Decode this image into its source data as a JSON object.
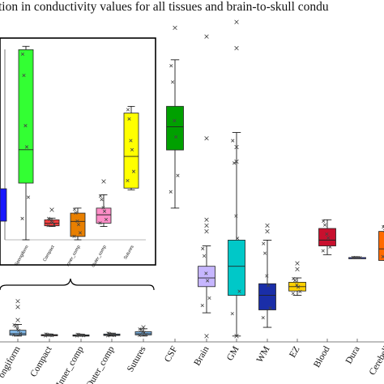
{
  "chart_data": {
    "type": "box",
    "title": "tion in conductivity values for all tissues and brain-to-skull condu",
    "main": {
      "categories": [
        "ongiform",
        "Compact",
        "Inner_comp",
        "Outer_comp",
        "Sutures",
        "CSF",
        "Brain",
        "GM",
        "WM",
        "EZ",
        "Blood",
        "Dura",
        "Cerebell"
      ],
      "colors": [
        "#7fb6e6",
        "#ff9090",
        "#7fb6e6",
        "#7fb6e6",
        "#7fb6e6",
        "#00a000",
        "#c6b6ff",
        "#00c8c8",
        "#1a2ea8",
        "#ffd000",
        "#c8102e",
        "#2a3cd8",
        "#ff6a00"
      ],
      "boxes": [
        {
          "min": 0.0,
          "q1": 0.003,
          "median": 0.008,
          "q3": 0.02,
          "max": 0.04,
          "outliers": [
            0.055,
            0.1,
            0.12
          ]
        },
        {
          "min": 0.0,
          "q1": 0.001,
          "median": 0.003,
          "q3": 0.005,
          "max": 0.007,
          "outliers": []
        },
        {
          "min": 0.0,
          "q1": 0.001,
          "median": 0.002,
          "q3": 0.004,
          "max": 0.006,
          "outliers": []
        },
        {
          "min": 0.0,
          "q1": 0.002,
          "median": 0.004,
          "q3": 0.007,
          "max": 0.01,
          "outliers": []
        },
        {
          "min": 0.0,
          "q1": 0.004,
          "median": 0.008,
          "q3": 0.015,
          "max": 0.025,
          "outliers": [
            0.03
          ]
        },
        {
          "min": 0.44,
          "q1": 0.64,
          "median": 0.72,
          "q3": 0.79,
          "max": 0.95,
          "outliers": [
            1.06
          ]
        },
        {
          "min": 0.08,
          "q1": 0.17,
          "median": 0.2,
          "q3": 0.24,
          "max": 0.31,
          "outliers": [
            0.0,
            0.36,
            0.38,
            0.4,
            0.68,
            1.03
          ]
        },
        {
          "min": 0.0,
          "q1": 0.14,
          "median": 0.24,
          "q3": 0.33,
          "max": 0.7,
          "outliers": [
            0.0,
            0.6,
            0.65,
            0.99,
            1.08
          ]
        },
        {
          "min": 0.03,
          "q1": 0.09,
          "median": 0.14,
          "q3": 0.18,
          "max": 0.33,
          "outliers": [
            0.36,
            0.38
          ]
        },
        {
          "min": 0.14,
          "q1": 0.155,
          "median": 0.17,
          "q3": 0.185,
          "max": 0.2,
          "outliers": [
            0.23,
            0.25
          ]
        },
        {
          "min": 0.28,
          "q1": 0.31,
          "median": 0.33,
          "q3": 0.37,
          "max": 0.4,
          "outliers": []
        },
        {
          "min": 0.27,
          "q1": 0.27,
          "median": 0.27,
          "q3": 0.27,
          "max": 0.27,
          "outliers": []
        },
        {
          "min": 0.26,
          "q1": 0.26,
          "median": 0.3,
          "q3": 0.36,
          "max": 0.38,
          "outliers": []
        }
      ],
      "ylim": [
        -0.02,
        1.1
      ]
    },
    "inset": {
      "categories": [
        "Spongiform",
        "Compact",
        "Inner_comp",
        "Outer_comp",
        "Sutures"
      ],
      "colors": [
        "#33ff33",
        "#ff4040",
        "#e87f00",
        "#ff8ec8",
        "#ffff00"
      ],
      "boxes": [
        {
          "min": 0.0,
          "q1": 0.017,
          "median": 0.027,
          "q3": 0.057,
          "max": 0.058,
          "outliers": []
        },
        {
          "min": 0.004,
          "q1": 0.0042,
          "median": 0.005,
          "q3": 0.006,
          "max": 0.0065,
          "outliers": [
            0.009
          ]
        },
        {
          "min": 0.0,
          "q1": 0.001,
          "median": 0.0055,
          "q3": 0.008,
          "max": 0.0095,
          "outliers": []
        },
        {
          "min": 0.004,
          "q1": 0.005,
          "median": 0.0075,
          "q3": 0.0095,
          "max": 0.0135,
          "outliers": [
            0.0175
          ]
        },
        {
          "min": 0.015,
          "q1": 0.0155,
          "median": 0.025,
          "q3": 0.038,
          "max": 0.04,
          "outliers": []
        }
      ],
      "ylim": [
        0,
        0.06
      ]
    }
  }
}
